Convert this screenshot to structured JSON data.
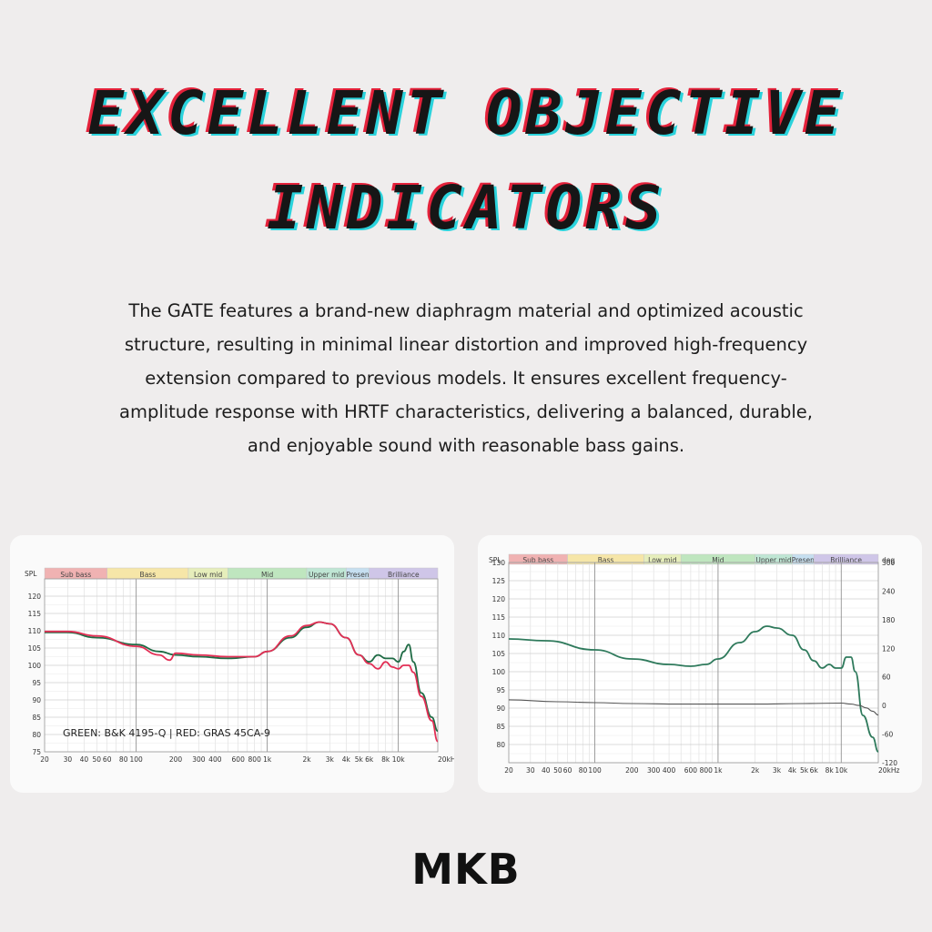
{
  "headline": {
    "line1": "EXCELLENT OBJECTIVE",
    "line2": "INDICATORS"
  },
  "description": "The GATE features a brand-new diaphragm material and optimized acoustic structure, resulting in minimal linear distortion and improved high-frequency extension compared to previous models. It ensures excellent frequency-amplitude response with HRTF characteristics, delivering a balanced, durable, and enjoyable sound with reasonable bass gains.",
  "brand": "MKB",
  "colors": {
    "title_shadow_red": "#e4213a",
    "title_shadow_cyan": "#2bd3dc",
    "green_curve": "#1f6b45",
    "red_curve": "#e22f55",
    "phase_curve": "#555555"
  },
  "chart_data": [
    {
      "type": "line",
      "x_scale": "log",
      "xlim": [
        20,
        20000
      ],
      "ylim": [
        75,
        125
      ],
      "ylabel": "SPL",
      "x_ticks": [
        20,
        30,
        40,
        50,
        60,
        80,
        100,
        200,
        300,
        400,
        600,
        800,
        1000,
        2000,
        3000,
        4000,
        5000,
        6000,
        8000,
        10000,
        20000
      ],
      "x_tick_labels": [
        "20",
        "30",
        "40",
        "50",
        "60",
        "80",
        "100",
        "200",
        "300",
        "400",
        "600",
        "800",
        "1k",
        "2k",
        "3k",
        "4k",
        "5k",
        "6k",
        "8k",
        "10k",
        "20kHz"
      ],
      "y_ticks": [
        75,
        80,
        85,
        90,
        95,
        100,
        105,
        110,
        115,
        120
      ],
      "y_tick_labels": [
        "75",
        "80",
        "85",
        "90",
        "95",
        "100",
        "105",
        "110",
        "115",
        "120"
      ],
      "bands": [
        {
          "label": "Sub bass",
          "from": 20,
          "to": 60,
          "color": "#f0b2b2"
        },
        {
          "label": "Bass",
          "from": 60,
          "to": 250,
          "color": "#f6e6a8"
        },
        {
          "label": "Low mid",
          "from": 250,
          "to": 500,
          "color": "#e6eebb"
        },
        {
          "label": "Mid",
          "from": 500,
          "to": 2000,
          "color": "#bfe6bf"
        },
        {
          "label": "Upper mid",
          "from": 2000,
          "to": 4000,
          "color": "#bfe6d4"
        },
        {
          "label": "Presence",
          "display": "Presen",
          "from": 4000,
          "to": 6000,
          "color": "#c6dff0"
        },
        {
          "label": "Brilliance",
          "from": 6000,
          "to": 20000,
          "color": "#cfc6e8"
        }
      ],
      "annotation": "GREEN: B&K 4195-Q | RED: GRAS 45CA-9",
      "series": [
        {
          "color": "#1f6b45",
          "x": [
            20,
            30,
            50,
            100,
            150,
            200,
            300,
            500,
            800,
            1000,
            1500,
            2000,
            2500,
            3000,
            4000,
            5000,
            6000,
            7000,
            8000,
            9000,
            10000,
            11000,
            12000,
            13000,
            15000,
            18000,
            20000
          ],
          "y": [
            109.5,
            109.5,
            108,
            106,
            104,
            103,
            102.5,
            102,
            102.5,
            104,
            108,
            111,
            112.5,
            112,
            108,
            103,
            101,
            103,
            102,
            102,
            101,
            104,
            106,
            101,
            92,
            85,
            81
          ]
        },
        {
          "color": "#e22f55",
          "x": [
            20,
            30,
            50,
            100,
            150,
            180,
            200,
            300,
            500,
            800,
            1000,
            1500,
            2000,
            2500,
            3000,
            4000,
            5000,
            6000,
            7000,
            8000,
            9000,
            10000,
            11000,
            12000,
            13000,
            15000,
            18000,
            20000
          ],
          "y": [
            109.8,
            109.8,
            108.5,
            105.5,
            103,
            101.5,
            103.5,
            103,
            102.5,
            102.5,
            104,
            108.5,
            111.5,
            112.5,
            112,
            108,
            103,
            100.5,
            99,
            101,
            99.5,
            99,
            100,
            100,
            98,
            91,
            84,
            78
          ]
        }
      ]
    },
    {
      "type": "line",
      "x_scale": "log",
      "xlim": [
        20,
        20000
      ],
      "ylim": [
        75,
        130
      ],
      "y2lim": [
        -120,
        300
      ],
      "ylabel": "SPL",
      "y2label": "deg",
      "x_ticks": [
        20,
        30,
        40,
        50,
        60,
        80,
        100,
        200,
        300,
        400,
        600,
        800,
        1000,
        2000,
        3000,
        4000,
        5000,
        6000,
        8000,
        10000,
        20000
      ],
      "x_tick_labels": [
        "20",
        "30",
        "40",
        "50",
        "60",
        "80",
        "100",
        "200",
        "300",
        "400",
        "600",
        "800",
        "1k",
        "2k",
        "3k",
        "4k",
        "5k",
        "6k",
        "8k",
        "10k",
        "20kHz"
      ],
      "y_ticks": [
        80,
        85,
        90,
        95,
        100,
        105,
        110,
        115,
        120,
        125,
        130
      ],
      "y_tick_labels": [
        "80",
        "85",
        "90",
        "95",
        "100",
        "105",
        "110",
        "115",
        "120",
        "125",
        "130"
      ],
      "y2_ticks": [
        -120,
        -60,
        0,
        60,
        120,
        180,
        240,
        300
      ],
      "y2_tick_labels": [
        "-120",
        "-60",
        "0",
        "60",
        "120",
        "180",
        "240",
        "300"
      ],
      "bands": [
        {
          "label": "Sub bass",
          "from": 20,
          "to": 60,
          "color": "#f0b2b2"
        },
        {
          "label": "Bass",
          "from": 60,
          "to": 250,
          "color": "#f6e6a8"
        },
        {
          "label": "Low mid",
          "from": 250,
          "to": 500,
          "color": "#e6eebb"
        },
        {
          "label": "Mid",
          "from": 500,
          "to": 2000,
          "color": "#bfe6bf"
        },
        {
          "label": "Upper mid",
          "from": 2000,
          "to": 4000,
          "color": "#bfe6d4"
        },
        {
          "label": "Presence",
          "display": "Presen",
          "from": 4000,
          "to": 6000,
          "color": "#c6dff0"
        },
        {
          "label": "Brilliance",
          "from": 6000,
          "to": 20000,
          "color": "#cfc6e8"
        }
      ],
      "series": [
        {
          "color": "#2f7a5c",
          "axis": "left",
          "x": [
            20,
            40,
            100,
            200,
            400,
            600,
            800,
            1000,
            1500,
            2000,
            2500,
            3000,
            4000,
            5000,
            6000,
            7000,
            8000,
            9000,
            10000,
            11000,
            12000,
            13000,
            15000,
            18000,
            20000
          ],
          "y": [
            109,
            108.5,
            106,
            103.5,
            102,
            101.5,
            102,
            103.5,
            108,
            111,
            112.5,
            112,
            110,
            106,
            103,
            101,
            102,
            101,
            101,
            104,
            104,
            100,
            88,
            82,
            78
          ]
        },
        {
          "color": "#555555",
          "axis": "right",
          "x": [
            20,
            50,
            100,
            200,
            500,
            1000,
            2000,
            5000,
            10000,
            12000,
            14000,
            16000,
            18000,
            20000
          ],
          "y": [
            12,
            8,
            6,
            4,
            3,
            3,
            3,
            4,
            5,
            3,
            0,
            -5,
            -12,
            -20
          ]
        }
      ]
    }
  ]
}
